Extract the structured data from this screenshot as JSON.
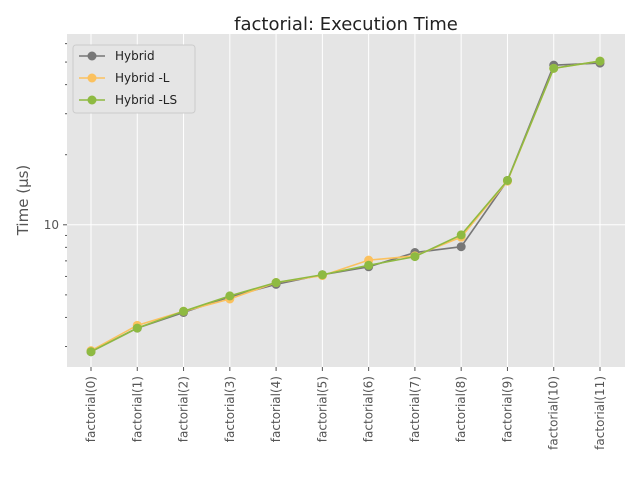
{
  "chart_data": {
    "type": "line",
    "title": "factorial: Execution Time",
    "xlabel": "",
    "ylabel": "Time (µs)",
    "yscale": "log",
    "ylim": [
      2.45,
      66
    ],
    "major_yticks": [
      10
    ],
    "major_ytick_labels": [
      "10"
    ],
    "minor_yticks": [
      3,
      4,
      5,
      6,
      7,
      8,
      9,
      20,
      30,
      40,
      50,
      60
    ],
    "grid": true,
    "legend_position": "top-left",
    "categories": [
      "factorial(0)",
      "factorial(1)",
      "factorial(2)",
      "factorial(3)",
      "factorial(4)",
      "factorial(5)",
      "factorial(6)",
      "factorial(7)",
      "factorial(8)",
      "factorial(9)",
      "factorial(10)",
      "factorial(11)"
    ],
    "series": [
      {
        "name": "Hybrid",
        "color": "#777777",
        "values": [
          2.85,
          3.6,
          4.2,
          4.9,
          5.55,
          6.1,
          6.6,
          7.6,
          8.05,
          15.5,
          48.5,
          49.5
        ]
      },
      {
        "name": "Hybrid -L",
        "color": "#FBC15E",
        "values": [
          2.88,
          3.7,
          4.25,
          4.8,
          5.65,
          6.05,
          7.05,
          7.35,
          8.85,
          15.4,
          47.0,
          50.5
        ]
      },
      {
        "name": "Hybrid -LS",
        "color": "#8EBA42",
        "values": [
          2.85,
          3.6,
          4.25,
          4.95,
          5.65,
          6.1,
          6.7,
          7.3,
          9.05,
          15.5,
          47.0,
          50.5
        ]
      }
    ]
  }
}
